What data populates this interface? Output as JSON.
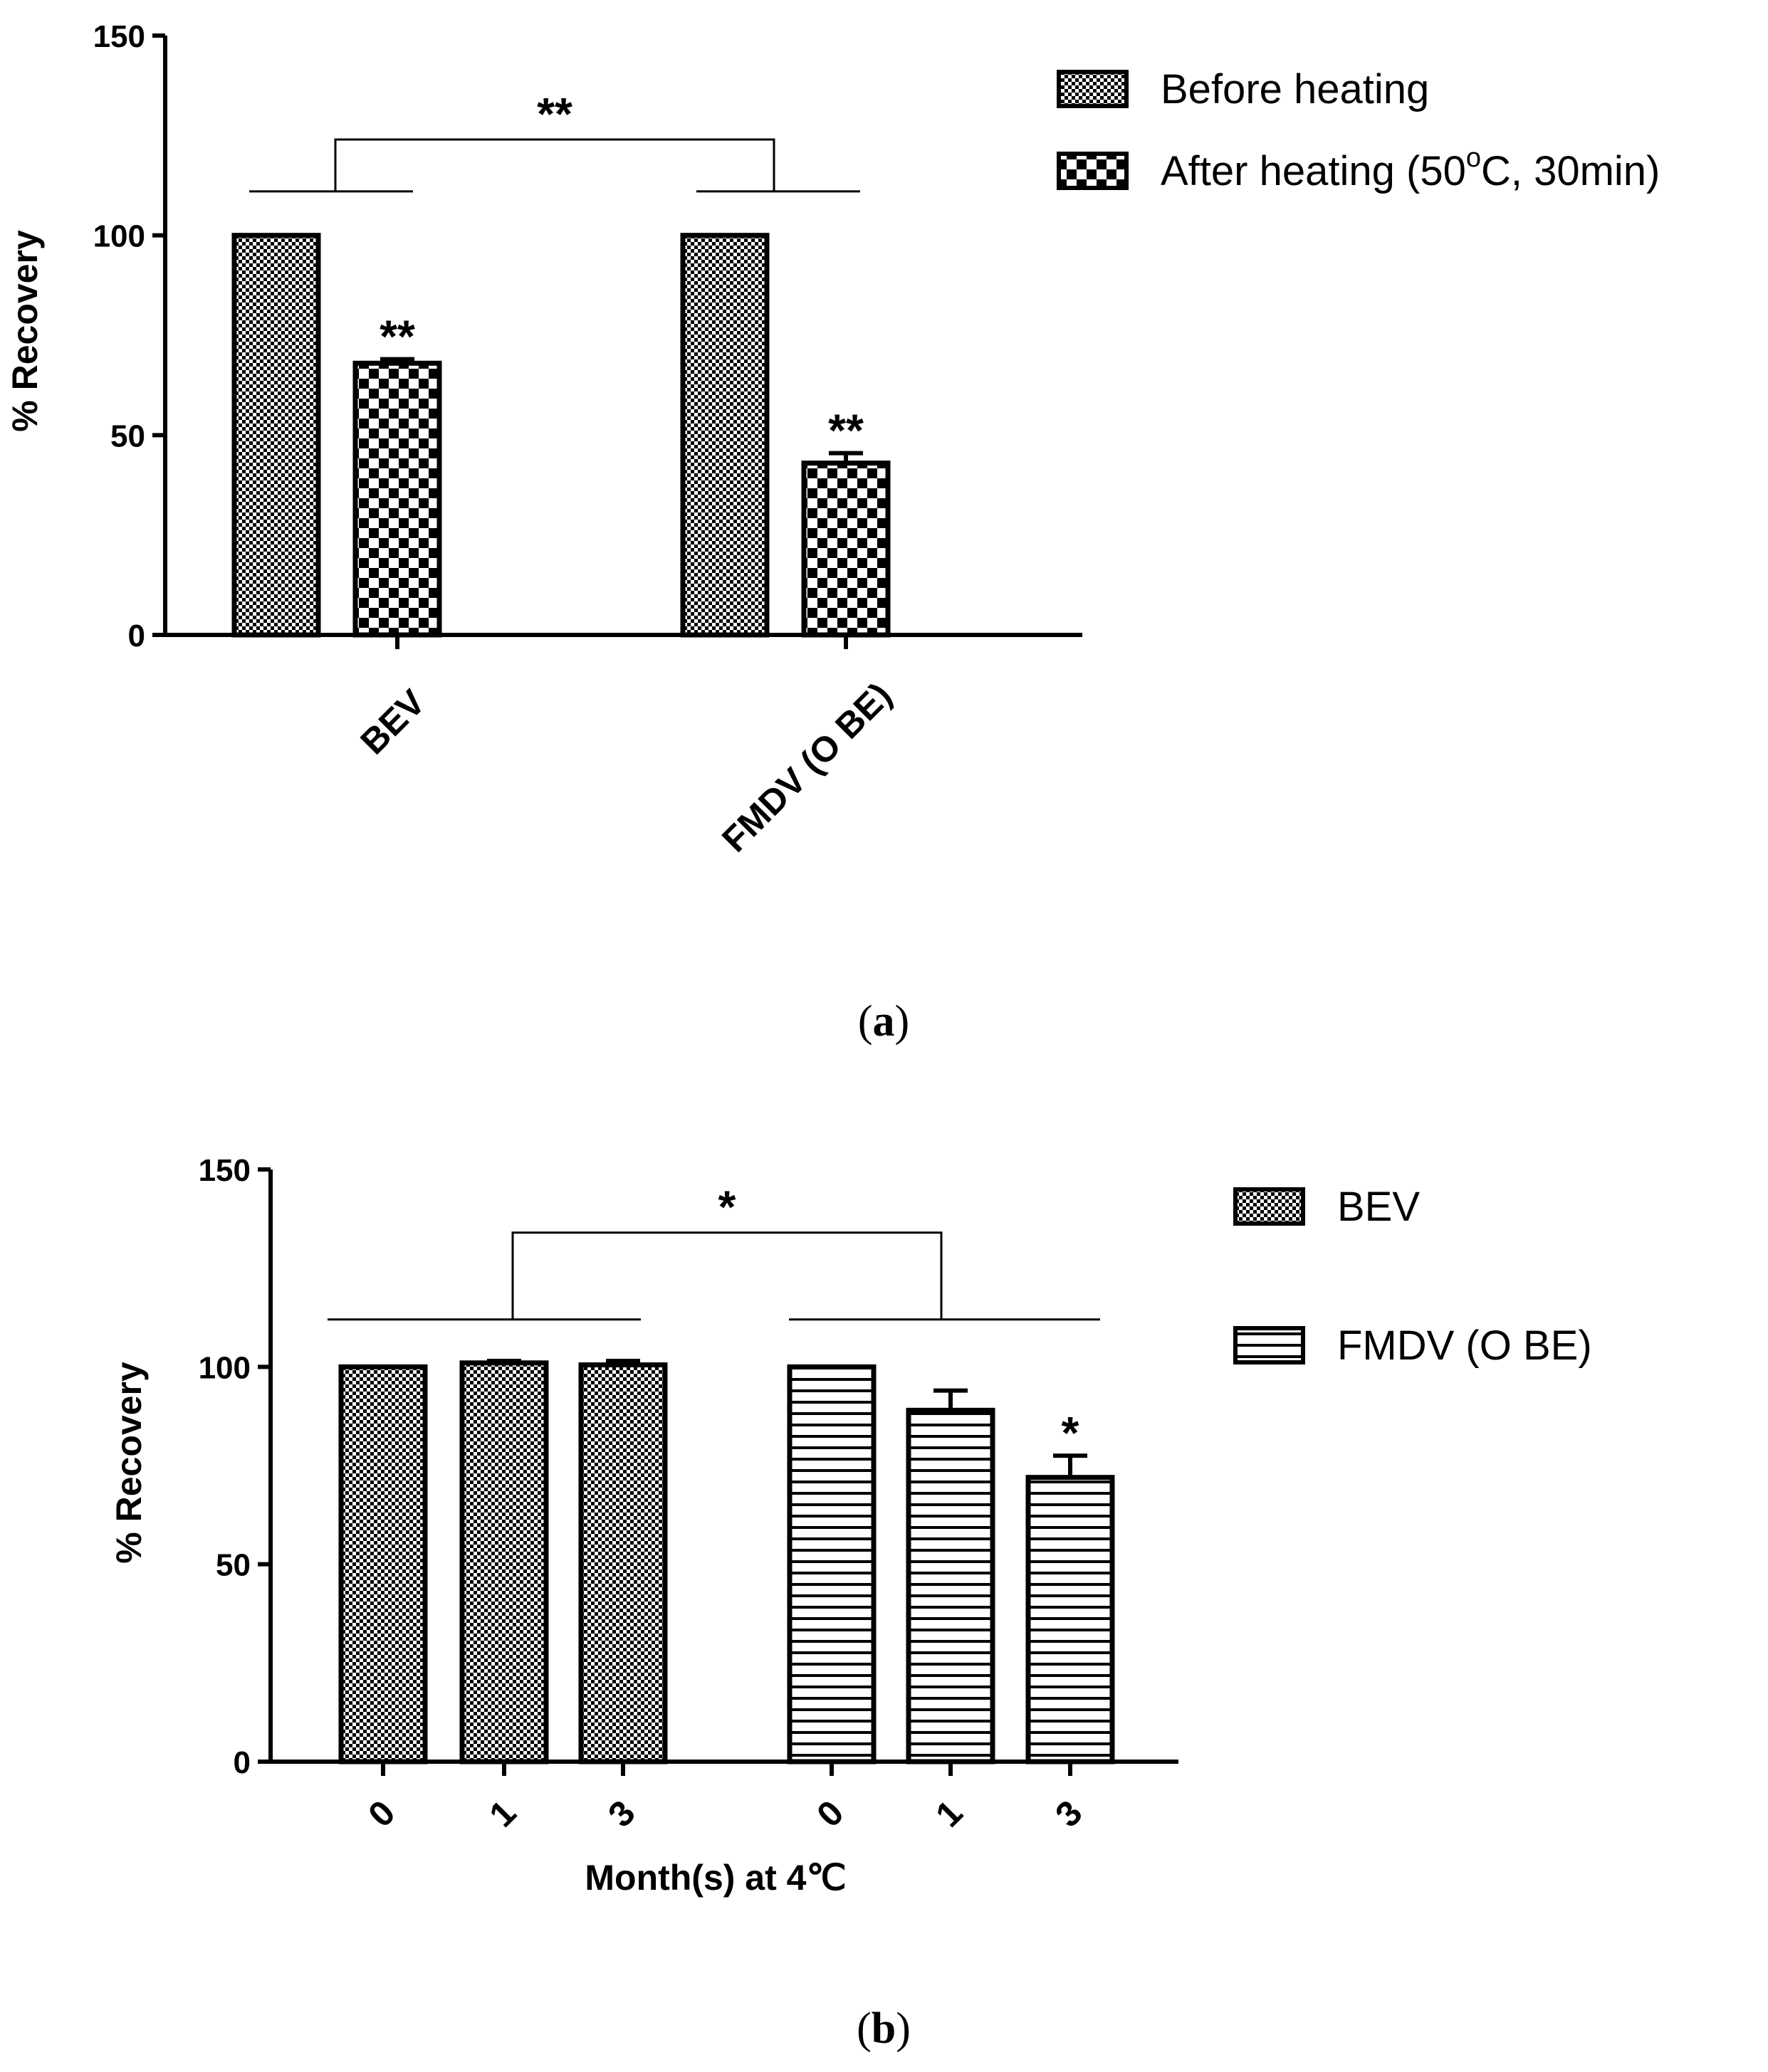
{
  "colors": {
    "ink": "#000000",
    "background": "#ffffff"
  },
  "chart_data": [
    {
      "type": "bar",
      "panel_label": "a",
      "title": "",
      "xlabel": "",
      "ylabel": "% Recovery",
      "ylim": [
        0,
        150
      ],
      "yticks": [
        0,
        50,
        100,
        150
      ],
      "categories": [
        "BEV",
        "FMDV (O BE)"
      ],
      "series": [
        {
          "name": "Before heating",
          "pattern": "fine-checker",
          "values": [
            100,
            100
          ],
          "errors": [
            0,
            0
          ]
        },
        {
          "name": "After heating (50 °C, 30min)",
          "legend_main": "After heating (50",
          "legend_sup": "o",
          "legend_tail": "C, 30min)",
          "pattern": "coarse-checker",
          "values": [
            68,
            43
          ],
          "errors": [
            1,
            2.5
          ]
        }
      ],
      "bar_annotations": [
        {
          "series": 1,
          "category": 0,
          "text": "**"
        },
        {
          "series": 1,
          "category": 1,
          "text": "**"
        }
      ],
      "group_comparison": {
        "text": "**",
        "level": 124,
        "group_line_level": 111
      },
      "legend_position": "top-right",
      "grid": false
    },
    {
      "type": "bar",
      "panel_label": "b",
      "title": "",
      "xlabel": "Month(s) at 4℃",
      "ylabel": "% Recovery",
      "ylim": [
        0,
        150
      ],
      "yticks": [
        0,
        50,
        100,
        150
      ],
      "groups": [
        {
          "name": "BEV",
          "pattern": "fine-checker",
          "months": [
            "0",
            "1",
            "3"
          ],
          "values": [
            100,
            101,
            100.5
          ],
          "errors": [
            0,
            0.5,
            1
          ]
        },
        {
          "name": "FMDV (O BE)",
          "pattern": "horizontal-stripes",
          "months": [
            "0",
            "1",
            "3"
          ],
          "values": [
            100,
            89,
            72
          ],
          "errors": [
            0,
            5,
            5.5
          ]
        }
      ],
      "bar_annotations": [
        {
          "group": 1,
          "index": 2,
          "text": "*"
        }
      ],
      "group_comparison": {
        "text": "*",
        "level": 134,
        "group_line_level": 112
      },
      "legend_position": "top-right",
      "grid": false
    }
  ]
}
